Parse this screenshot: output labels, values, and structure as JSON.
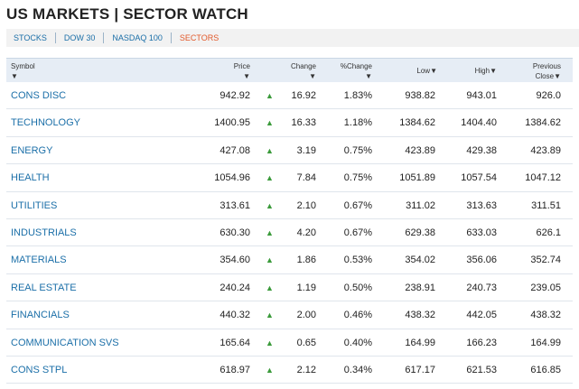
{
  "title": "US MARKETS | SECTOR WATCH",
  "tabs": [
    "STOCKS",
    "DOW 30",
    "NASDAQ 100",
    "SECTORS"
  ],
  "active_tab": "SECTORS",
  "columns": {
    "symbol": "Symbol",
    "price": "Price",
    "change": "Change",
    "pct_change": "%Change",
    "low": "Low",
    "high": "High",
    "prev_close_line1": "Previous",
    "prev_close_line2": "Close"
  },
  "sort_arrow": "▼",
  "up_arrow": "▲",
  "rows": [
    {
      "symbol": "CONS DISC",
      "price": "942.92",
      "change": "16.92",
      "pct": "1.83%",
      "low": "938.82",
      "high": "943.01",
      "prev": "926.0"
    },
    {
      "symbol": "TECHNOLOGY",
      "price": "1400.95",
      "change": "16.33",
      "pct": "1.18%",
      "low": "1384.62",
      "high": "1404.40",
      "prev": "1384.62"
    },
    {
      "symbol": "ENERGY",
      "price": "427.08",
      "change": "3.19",
      "pct": "0.75%",
      "low": "423.89",
      "high": "429.38",
      "prev": "423.89"
    },
    {
      "symbol": "HEALTH",
      "price": "1054.96",
      "change": "7.84",
      "pct": "0.75%",
      "low": "1051.89",
      "high": "1057.54",
      "prev": "1047.12"
    },
    {
      "symbol": "UTILITIES",
      "price": "313.61",
      "change": "2.10",
      "pct": "0.67%",
      "low": "311.02",
      "high": "313.63",
      "prev": "311.51"
    },
    {
      "symbol": "INDUSTRIALS",
      "price": "630.30",
      "change": "4.20",
      "pct": "0.67%",
      "low": "629.38",
      "high": "633.03",
      "prev": "626.1"
    },
    {
      "symbol": "MATERIALS",
      "price": "354.60",
      "change": "1.86",
      "pct": "0.53%",
      "low": "354.02",
      "high": "356.06",
      "prev": "352.74"
    },
    {
      "symbol": "REAL ESTATE",
      "price": "240.24",
      "change": "1.19",
      "pct": "0.50%",
      "low": "238.91",
      "high": "240.73",
      "prev": "239.05"
    },
    {
      "symbol": "FINANCIALS",
      "price": "440.32",
      "change": "2.00",
      "pct": "0.46%",
      "low": "438.32",
      "high": "442.05",
      "prev": "438.32"
    },
    {
      "symbol": "COMMUNICATION SVS",
      "price": "165.64",
      "change": "0.65",
      "pct": "0.40%",
      "low": "164.99",
      "high": "166.23",
      "prev": "164.99"
    },
    {
      "symbol": "CONS STPL",
      "price": "618.97",
      "change": "2.12",
      "pct": "0.34%",
      "low": "617.17",
      "high": "621.53",
      "prev": "616.85"
    }
  ],
  "colors": {
    "link": "#1b6fa8",
    "active_tab": "#e25a2b",
    "up": "#3a9a3a",
    "header_bg": "#e6edf5"
  }
}
